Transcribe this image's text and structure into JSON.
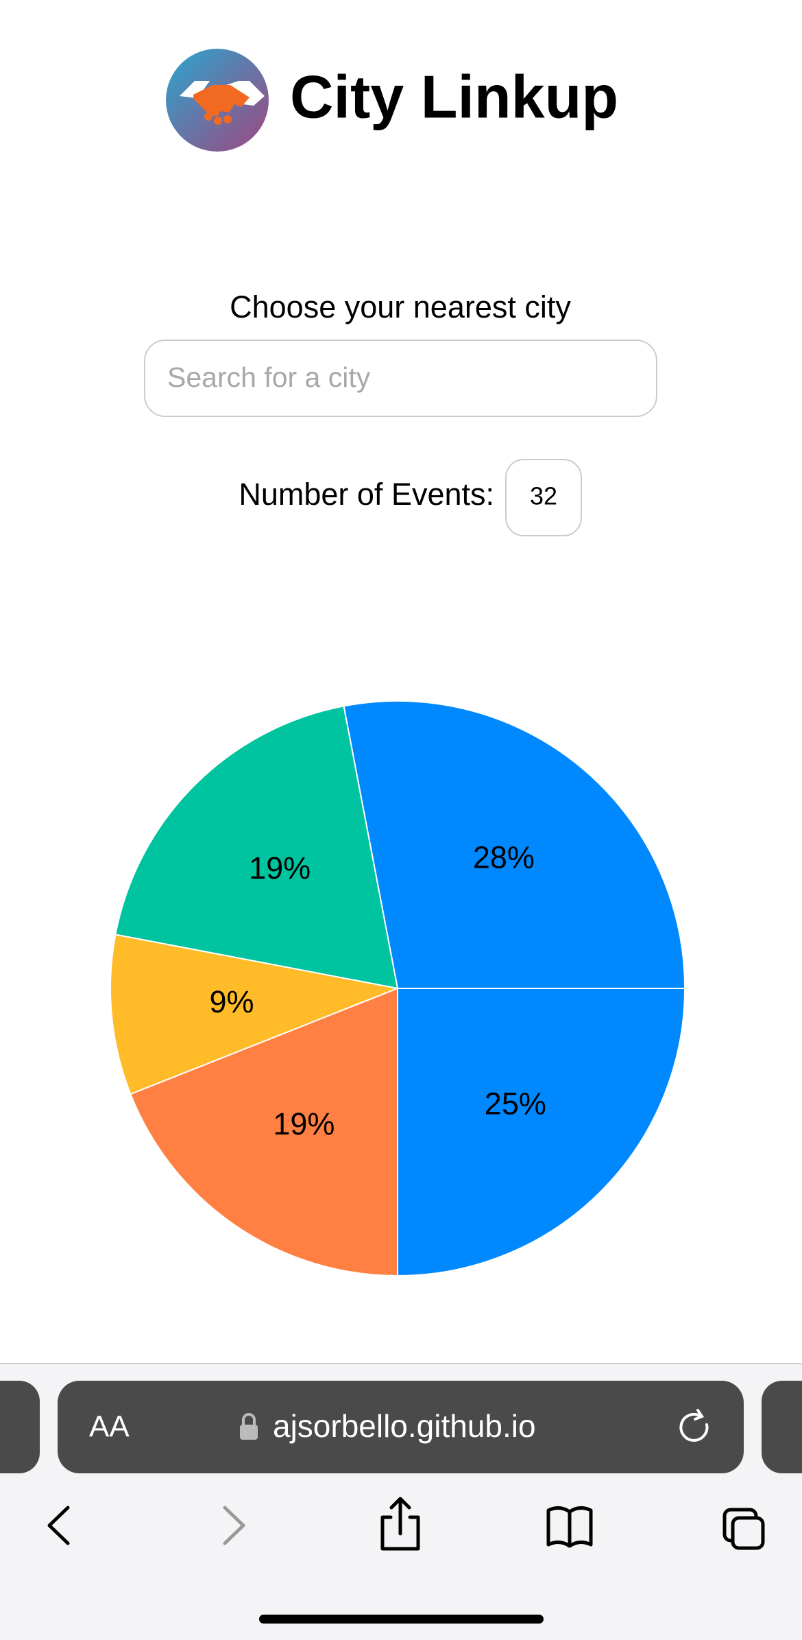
{
  "header": {
    "title": "City Linkup"
  },
  "search": {
    "label": "Choose your nearest city",
    "placeholder": "Search for a city"
  },
  "events": {
    "label": "Number of Events:",
    "value": 32
  },
  "chart_data": {
    "type": "pie",
    "values": [
      28,
      19,
      9,
      19,
      25
    ],
    "value_labels": [
      "28%",
      "19%",
      "9%",
      "19%",
      "25%"
    ],
    "colors": [
      "#0088FE",
      "#00C49F",
      "#FFBB28",
      "#FF8042",
      "#0088FE"
    ]
  },
  "browser": {
    "text_size": "AA",
    "url": "ajsorbello.github.io"
  }
}
